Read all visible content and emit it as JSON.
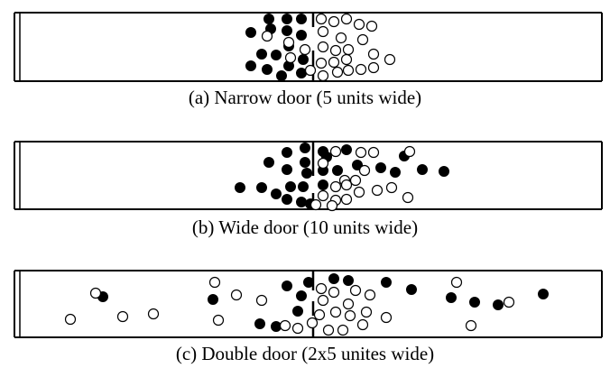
{
  "figure": {
    "panels": [
      {
        "caption": "(a) Narrow door (5 units wide)",
        "door": {
          "type": "single",
          "width_units": 5
        },
        "filled": [
          [
            298,
            21
          ],
          [
            318,
            21
          ],
          [
            334,
            21
          ],
          [
            278,
            36
          ],
          [
            300,
            32
          ],
          [
            318,
            34
          ],
          [
            334,
            39
          ],
          [
            320,
            51
          ],
          [
            290,
            60
          ],
          [
            306,
            61
          ],
          [
            278,
            73
          ],
          [
            296,
            77
          ],
          [
            320,
            73
          ],
          [
            336,
            66
          ],
          [
            334,
            81
          ],
          [
            312,
            84
          ]
        ],
        "hollow": [
          [
            356,
            21
          ],
          [
            370,
            24
          ],
          [
            384,
            21
          ],
          [
            398,
            27
          ],
          [
            412,
            29
          ],
          [
            358,
            35
          ],
          [
            378,
            42
          ],
          [
            296,
            40
          ],
          [
            320,
            47
          ],
          [
            338,
            55
          ],
          [
            358,
            52
          ],
          [
            372,
            56
          ],
          [
            386,
            55
          ],
          [
            402,
            44
          ],
          [
            414,
            60
          ],
          [
            322,
            64
          ],
          [
            356,
            70
          ],
          [
            370,
            69
          ],
          [
            384,
            66
          ],
          [
            432,
            66
          ],
          [
            344,
            78
          ],
          [
            358,
            84
          ],
          [
            374,
            80
          ],
          [
            386,
            78
          ],
          [
            400,
            77
          ],
          [
            414,
            75
          ]
        ]
      },
      {
        "caption": "(b) Wide door (10 units wide)",
        "door": {
          "type": "single",
          "width_units": 10
        },
        "filled": [
          [
            338,
            164
          ],
          [
            318,
            169
          ],
          [
            358,
            168
          ],
          [
            384,
            166
          ],
          [
            298,
            180
          ],
          [
            338,
            180
          ],
          [
            362,
            174
          ],
          [
            318,
            188
          ],
          [
            340,
            192
          ],
          [
            358,
            189
          ],
          [
            374,
            189
          ],
          [
            396,
            183
          ],
          [
            422,
            186
          ],
          [
            438,
            191
          ],
          [
            448,
            173
          ],
          [
            468,
            188
          ],
          [
            492,
            190
          ],
          [
            266,
            208
          ],
          [
            290,
            208
          ],
          [
            306,
            215
          ],
          [
            322,
            207
          ],
          [
            336,
            207
          ],
          [
            358,
            205
          ],
          [
            318,
            221
          ],
          [
            334,
            224
          ],
          [
            344,
            226
          ]
        ],
        "hollow": [
          [
            372,
            168
          ],
          [
            400,
            169
          ],
          [
            414,
            169
          ],
          [
            454,
            168
          ],
          [
            358,
            181
          ],
          [
            382,
            200
          ],
          [
            394,
            200
          ],
          [
            404,
            189
          ],
          [
            372,
            207
          ],
          [
            384,
            205
          ],
          [
            398,
            213
          ],
          [
            418,
            211
          ],
          [
            434,
            208
          ],
          [
            452,
            219
          ],
          [
            358,
            217
          ],
          [
            372,
            222
          ],
          [
            384,
            221
          ],
          [
            350,
            227
          ],
          [
            368,
            228
          ]
        ]
      },
      {
        "caption": "(c) Double door (2x5 unites wide)",
        "door": {
          "type": "double",
          "width_units": "2x5"
        },
        "filled": [
          [
            114,
            329
          ],
          [
            236,
            332
          ],
          [
            318,
            317
          ],
          [
            342,
            313
          ],
          [
            370,
            309
          ],
          [
            386,
            311
          ],
          [
            428,
            313
          ],
          [
            334,
            328
          ],
          [
            456,
            321
          ],
          [
            500,
            330
          ],
          [
            526,
            335
          ],
          [
            552,
            338
          ],
          [
            602,
            326
          ],
          [
            330,
            345
          ],
          [
            288,
            359
          ],
          [
            306,
            362
          ]
        ],
        "hollow": [
          [
            106,
            325
          ],
          [
            238,
            313
          ],
          [
            262,
            327
          ],
          [
            290,
            333
          ],
          [
            356,
            320
          ],
          [
            370,
            324
          ],
          [
            394,
            322
          ],
          [
            410,
            327
          ],
          [
            358,
            333
          ],
          [
            386,
            337
          ],
          [
            354,
            349
          ],
          [
            372,
            346
          ],
          [
            388,
            350
          ],
          [
            406,
            346
          ],
          [
            428,
            352
          ],
          [
            506,
            313
          ],
          [
            564,
            335
          ],
          [
            78,
            354
          ],
          [
            136,
            351
          ],
          [
            170,
            348
          ],
          [
            242,
            355
          ],
          [
            316,
            361
          ],
          [
            330,
            364
          ],
          [
            346,
            358
          ],
          [
            364,
            366
          ],
          [
            380,
            366
          ],
          [
            402,
            360
          ],
          [
            522,
            361
          ]
        ]
      }
    ]
  }
}
